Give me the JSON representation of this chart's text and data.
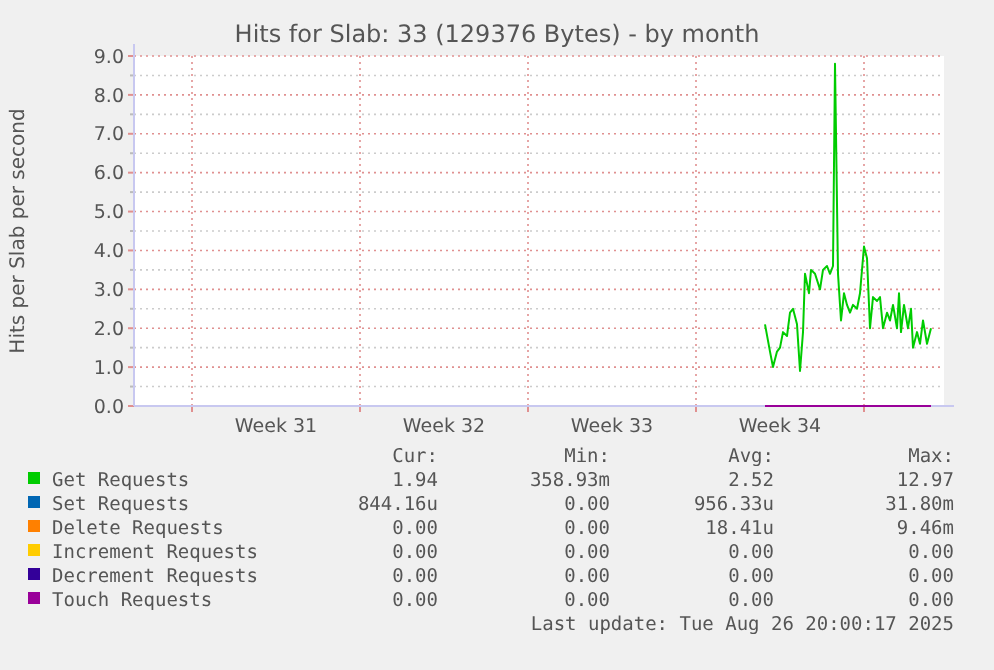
{
  "chart_data": {
    "type": "line",
    "title": "Hits for Slab: 33 (129376 Bytes) - by month",
    "ylabel": "Hits per Slab per second",
    "xlim": [
      "2025-07-25T14:00",
      "2025-08-28T08:00"
    ],
    "xticks": [
      {
        "value": "2025-07-28T00:00",
        "label": null
      },
      {
        "value": "2025-07-31T12:00",
        "label": "Week 31"
      },
      {
        "value": "2025-08-04T00:00",
        "label": null
      },
      {
        "value": "2025-08-07T12:00",
        "label": "Week 32"
      },
      {
        "value": "2025-08-11T00:00",
        "label": null
      },
      {
        "value": "2025-08-14T12:00",
        "label": "Week 33"
      },
      {
        "value": "2025-08-18T00:00",
        "label": null
      },
      {
        "value": "2025-08-21T12:00",
        "label": "Week 34"
      },
      {
        "value": "2025-08-25T00:00",
        "label": null
      }
    ],
    "ylim": [
      0,
      9
    ],
    "yticks": [
      {
        "value": 0,
        "label": "0.0"
      },
      {
        "value": 0.5,
        "label": null
      },
      {
        "value": 1,
        "label": "1.0"
      },
      {
        "value": 1.5,
        "label": null
      },
      {
        "value": 2,
        "label": "2.0"
      },
      {
        "value": 2.5,
        "label": null
      },
      {
        "value": 3,
        "label": "3.0"
      },
      {
        "value": 3.5,
        "label": null
      },
      {
        "value": 4,
        "label": "4.0"
      },
      {
        "value": 4.5,
        "label": null
      },
      {
        "value": 5,
        "label": "5.0"
      },
      {
        "value": 5.5,
        "label": null
      },
      {
        "value": 6,
        "label": "6.0"
      },
      {
        "value": 6.5,
        "label": null
      },
      {
        "value": 7,
        "label": "7.0"
      },
      {
        "value": 7.5,
        "label": null
      },
      {
        "value": 8,
        "label": "8.0"
      },
      {
        "value": 8.5,
        "label": null
      },
      {
        "value": 9,
        "label": "9.0"
      }
    ],
    "grid": true,
    "legend": "bottom",
    "marker": "none",
    "line_style": "solid",
    "series": [
      {
        "name": "Get Requests",
        "color": "#00cc00",
        "x": [
          "2025-08-20T21:00",
          "2025-08-21T02:00",
          "2025-08-21T05:00",
          "2025-08-21T09:00",
          "2025-08-21T12:00",
          "2025-08-21T15:00",
          "2025-08-21T19:00",
          "2025-08-21T22:00",
          "2025-08-22T01:00",
          "2025-08-22T05:00",
          "2025-08-22T08:00",
          "2025-08-22T11:00",
          "2025-08-22T13:00",
          "2025-08-22T17:00",
          "2025-08-22T19:00",
          "2025-08-22T23:00",
          "2025-08-23T04:00",
          "2025-08-23T07:00",
          "2025-08-23T11:00",
          "2025-08-23T14:00",
          "2025-08-23T17:00",
          "2025-08-23T19:00",
          "2025-08-23T22:00",
          "2025-08-24T01:00",
          "2025-08-24T04:00",
          "2025-08-24T07:00",
          "2025-08-24T10:00",
          "2025-08-24T13:00",
          "2025-08-24T17:00",
          "2025-08-24T20:00",
          "2025-08-25T00:00",
          "2025-08-25T03:00",
          "2025-08-25T06:00",
          "2025-08-25T09:00",
          "2025-08-25T13:00",
          "2025-08-25T16:00",
          "2025-08-25T19:00",
          "2025-08-25T23:00",
          "2025-08-26T02:00",
          "2025-08-26T05:00",
          "2025-08-26T09:00",
          "2025-08-26T11:00",
          "2025-08-26T13:00",
          "2025-08-26T16:00",
          "2025-08-26T20:00",
          "2025-08-26T23:00",
          "2025-08-27T01:00",
          "2025-08-27T05:00",
          "2025-08-27T08:00",
          "2025-08-27T11:00",
          "2025-08-27T15:00",
          "2025-08-27T19:00"
        ],
        "values": [
          2.1,
          1.4,
          1.0,
          1.4,
          1.5,
          1.9,
          1.8,
          2.4,
          2.5,
          2.1,
          0.9,
          1.9,
          3.4,
          2.9,
          3.5,
          3.4,
          3.0,
          3.5,
          3.6,
          3.4,
          3.6,
          8.8,
          3.4,
          2.2,
          2.9,
          2.6,
          2.4,
          2.6,
          2.5,
          2.9,
          4.1,
          3.8,
          2.0,
          2.8,
          2.7,
          2.8,
          2.0,
          2.4,
          2.2,
          2.6,
          2.0,
          2.9,
          1.9,
          2.6,
          2.0,
          2.5,
          1.5,
          1.9,
          1.6,
          2.2,
          1.6,
          2.0
        ]
      },
      {
        "name": "Set Requests",
        "color": "#0066b3"
      },
      {
        "name": "Delete Requests",
        "color": "#ff8000"
      },
      {
        "name": "Increment Requests",
        "color": "#ffcc00"
      },
      {
        "name": "Decrement Requests",
        "color": "#330099"
      },
      {
        "name": "Touch Requests",
        "color": "#990099",
        "x": [
          "2025-08-20T21:00",
          "2025-08-27T19:00"
        ],
        "values": [
          0,
          0
        ]
      }
    ],
    "annotations": [
      "Cur:",
      "Min:",
      "Avg:",
      "Max:",
      "1.94",
      "358.93m",
      "2.52",
      "12.97",
      "844.16u",
      "0.00",
      "956.33u",
      "31.80m",
      "0.00",
      "0.00",
      "18.41u",
      "9.46m",
      "0.00",
      "0.00",
      "0.00",
      "0.00",
      "0.00",
      "0.00",
      "0.00",
      "0.00",
      "0.00",
      "0.00",
      "0.00",
      "0.00",
      "Last update: Tue Aug 26 20:00:17 2025"
    ]
  }
}
